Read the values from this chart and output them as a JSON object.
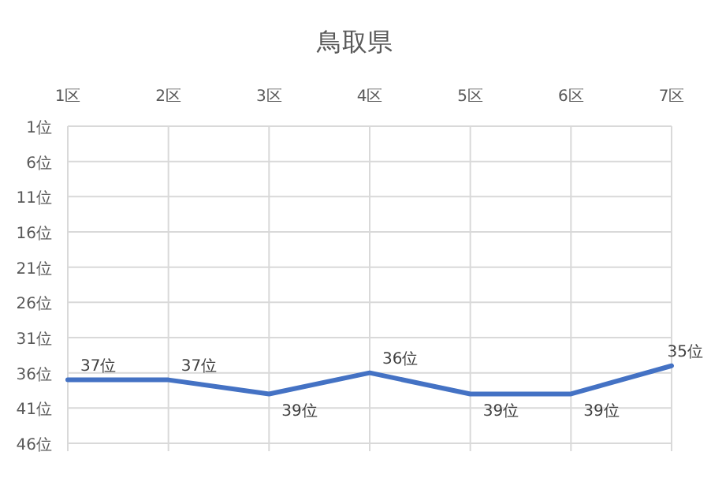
{
  "chart_data": {
    "type": "line",
    "title": "鳥取県",
    "categories": [
      "1区",
      "2区",
      "3区",
      "4区",
      "5区",
      "6区",
      "7区"
    ],
    "series": [
      {
        "color": "#4472c4",
        "values": [
          37,
          37,
          39,
          36,
          39,
          39,
          35
        ],
        "value_labels": [
          "37位",
          "37位",
          "39位",
          "36位",
          "39位",
          "39位",
          "35位"
        ]
      }
    ],
    "ylim": [
      46,
      1
    ],
    "yticks": [
      {
        "value": 1,
        "label": "1位"
      },
      {
        "value": 6,
        "label": "6位"
      },
      {
        "value": 11,
        "label": "11位"
      },
      {
        "value": 16,
        "label": "16位"
      },
      {
        "value": 21,
        "label": "21位"
      },
      {
        "value": 26,
        "label": "26位"
      },
      {
        "value": 31,
        "label": "31位"
      },
      {
        "value": 36,
        "label": "36位"
      },
      {
        "value": 41,
        "label": "41位"
      },
      {
        "value": 46,
        "label": "46位"
      }
    ],
    "grid": true,
    "marker": "none",
    "line_style": "solid"
  }
}
